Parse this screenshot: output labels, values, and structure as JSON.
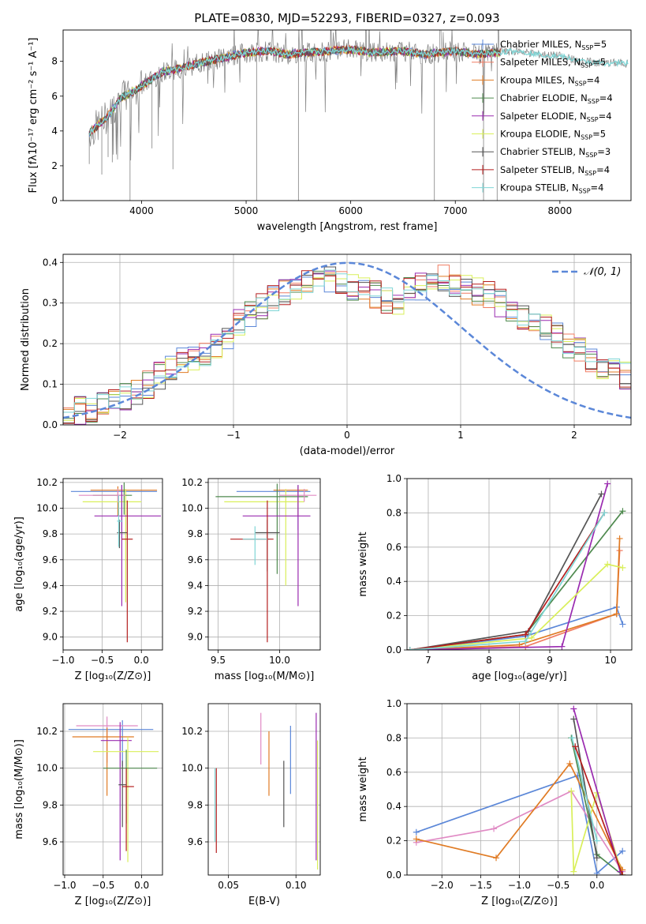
{
  "title": "PLATE=0830, MJD=52293, FIBERID=0327, z=0.093",
  "colors": {
    "chabrier_miles": "#5b87d8",
    "salpeter_miles": "#f07d63",
    "kroupa_miles": "#e07b24",
    "chabrier_elodie": "#4f8a4f",
    "salpeter_elodie": "#9a2bb0",
    "kroupa_elodie": "#d9ef5a",
    "chabrier_stelib": "#555555",
    "salpeter_stelib": "#b51f1f",
    "kroupa_stelib": "#7fd6d6",
    "extra_pink": "#e08ac4",
    "data": "#808080",
    "gauss": "#5b87d8"
  },
  "chart_data": [
    {
      "id": "spectrum",
      "type": "line",
      "xlabel": "wavelength [Angstrom, rest frame]",
      "ylabel": "Flux [fλ10⁻¹⁷ erg cm⁻² s⁻¹ A⁻¹]",
      "xlim": [
        3250,
        8680
      ],
      "ylim": [
        0,
        9.8
      ],
      "xticks": [
        "4000",
        "5000",
        "6000",
        "7000",
        "8000"
      ],
      "yticks": [
        "0",
        "2",
        "4",
        "6",
        "8"
      ],
      "legend_position": "right",
      "legend": [
        "Chabrier MILES, N_SSP=5",
        "Salpeter MILES, N_SSP=5",
        "Kroupa MILES, N_SSP=4",
        "Chabrier ELODIE, N_SSP=4",
        "Salpeter ELODIE, N_SSP=4",
        "Kroupa ELODIE, N_SSP=5",
        "Chabrier STELIB, N_SSP=3",
        "Salpeter STELIB, N_SSP=4",
        "Kroupa STELIB, N_SSP=4"
      ],
      "continuum": {
        "x": [
          3500,
          3600,
          3700,
          3800,
          3900,
          4000,
          4100,
          4200,
          4300,
          4500,
          4700,
          5000,
          5200,
          5400,
          5600,
          5800,
          6000,
          6200,
          6500,
          6700,
          7000,
          7200,
          7400,
          7600,
          7800,
          8000,
          8200,
          8400,
          8600
        ],
        "y": [
          3.9,
          4.4,
          5.0,
          5.9,
          6.2,
          6.6,
          7.0,
          7.4,
          7.5,
          7.8,
          8.1,
          8.5,
          8.6,
          8.4,
          8.5,
          8.6,
          8.7,
          8.5,
          8.6,
          8.4,
          8.6,
          8.4,
          8.5,
          8.6,
          8.4,
          8.3,
          8.0,
          7.9,
          7.9
        ]
      },
      "dips": {
        "x": [
          3500,
          3620,
          3680,
          3720,
          3760,
          3890,
          4100,
          4300,
          5100,
          5500,
          6800,
          7270,
          7400
        ],
        "y": [
          2.1,
          1.5,
          2.5,
          2.2,
          3.9,
          0.0,
          3.0,
          1.8,
          0.0,
          0.0,
          0.0,
          0.0,
          0.0
        ]
      }
    },
    {
      "id": "residuals",
      "type": "histogram",
      "xlabel": "(data-model)/error",
      "ylabel": "Normed distribution",
      "xlim": [
        -2.5,
        2.5
      ],
      "ylim": [
        0,
        0.42
      ],
      "xticks": [
        "−2",
        "−1",
        "0",
        "1",
        "2"
      ],
      "yticks": [
        "0.0",
        "0.1",
        "0.2",
        "0.3",
        "0.4"
      ],
      "legend_position": "top-right",
      "gauss_label": "𝒩(0, 1)",
      "bin_width": 0.1,
      "base": [
        0.03,
        0.035,
        0.04,
        0.05,
        0.06,
        0.07,
        0.08,
        0.1,
        0.12,
        0.14,
        0.16,
        0.17,
        0.18,
        0.2,
        0.22,
        0.25,
        0.27,
        0.29,
        0.31,
        0.33,
        0.34,
        0.35,
        0.36,
        0.36,
        0.35,
        0.34,
        0.33,
        0.32,
        0.31,
        0.3,
        0.33,
        0.34,
        0.35,
        0.36,
        0.35,
        0.34,
        0.33,
        0.32,
        0.3,
        0.29,
        0.27,
        0.26,
        0.24,
        0.22,
        0.2,
        0.18,
        0.16,
        0.14,
        0.13,
        0.12,
        0.11,
        0.1,
        0.09,
        0.085,
        0.08,
        0.075,
        0.07,
        0.065,
        0.06,
        0.055
      ]
    },
    {
      "id": "age_vs_Z",
      "type": "errorbar",
      "xlabel": "Z [log₁₀(Z/Z⊙)]",
      "ylabel": "age [log₁₀(age/yr)]",
      "xlim": [
        -1.0,
        0.27
      ],
      "ylim": [
        8.9,
        10.23
      ],
      "xticks": [
        "−1.0",
        "−0.5",
        "0.0"
      ],
      "yticks": [
        "9.0",
        "9.2",
        "9.4",
        "9.6",
        "9.8",
        "10.0",
        "10.2"
      ],
      "points": [
        {
          "series": "chabrier_miles",
          "x": -0.25,
          "xerr": [
            0.65,
            0.45
          ],
          "y": 10.13,
          "yerr": [
            0.3,
            0.05
          ]
        },
        {
          "series": "kroupa_miles",
          "x": -0.3,
          "xerr": [
            0.35,
            0.5
          ],
          "y": 10.14,
          "yerr": [
            0.2,
            0.03
          ]
        },
        {
          "series": "kroupa_elodie",
          "x": -0.2,
          "xerr": [
            0.55,
            0.2
          ],
          "y": 10.05,
          "yerr": [
            0.78,
            0.1
          ]
        },
        {
          "series": "chabrier_elodie",
          "x": -0.22,
          "xerr": [
            0.4,
            0.1
          ],
          "y": 10.1,
          "yerr": [
            0.15,
            0.1
          ]
        },
        {
          "series": "extra_pink",
          "x": -0.3,
          "xerr": [
            0.5,
            0.1
          ],
          "y": 10.1,
          "yerr": [
            0.05,
            0.05
          ]
        },
        {
          "series": "salpeter_elodie",
          "x": -0.25,
          "xerr": [
            0.35,
            0.5
          ],
          "y": 9.94,
          "yerr": [
            0.7,
            0.24
          ]
        },
        {
          "series": "chabrier_stelib",
          "x": -0.28,
          "xerr": [
            0.03,
            0.1
          ],
          "y": 9.81,
          "yerr": [
            0.12,
            0.1
          ]
        },
        {
          "series": "salpeter_stelib",
          "x": -0.18,
          "xerr": [
            0.07,
            0.07
          ],
          "y": 9.76,
          "yerr": [
            0.8,
            0.3
          ]
        },
        {
          "series": "kroupa_stelib",
          "x": -0.29,
          "xerr": [
            0.02,
            0.05
          ],
          "y": 9.9,
          "yerr": [
            0.2,
            0.2
          ]
        }
      ]
    },
    {
      "id": "age_vs_mass",
      "type": "errorbar",
      "xlabel": "mass [log₁₀(M/M⊙)]",
      "ylabel": "",
      "xlim": [
        9.42,
        10.33
      ],
      "ylim": [
        8.9,
        10.23
      ],
      "xticks": [
        "9.5",
        "10.0"
      ],
      "yticks": [
        "9.0",
        "9.2",
        "9.4",
        "9.6",
        "9.8",
        "10.0",
        "10.2"
      ],
      "points": [
        {
          "series": "chabrier_miles",
          "x": 10.15,
          "xerr": [
            0.5,
            0.1
          ],
          "y": 10.13,
          "yerr": [
            0.3,
            0.05
          ]
        },
        {
          "series": "kroupa_miles",
          "x": 10.15,
          "xerr": [
            0.2,
            0.08
          ],
          "y": 10.14,
          "yerr": [
            0.2,
            0.03
          ]
        },
        {
          "series": "kroupa_elodie",
          "x": 10.05,
          "xerr": [
            0.5,
            0.15
          ],
          "y": 10.05,
          "yerr": [
            0.65,
            0.1
          ]
        },
        {
          "series": "chabrier_elodie",
          "x": 9.98,
          "xerr": [
            0.5,
            0.25
          ],
          "y": 10.09,
          "yerr": [
            0.6,
            0.1
          ]
        },
        {
          "series": "extra_pink",
          "x": 10.2,
          "xerr": [
            0.2,
            0.1
          ],
          "y": 10.1,
          "yerr": [
            0.05,
            0.05
          ]
        },
        {
          "series": "salpeter_elodie",
          "x": 10.15,
          "xerr": [
            0.45,
            0.1
          ],
          "y": 9.94,
          "yerr": [
            0.7,
            0.24
          ]
        },
        {
          "series": "chabrier_stelib",
          "x": 9.9,
          "xerr": [
            0.1,
            0.1
          ],
          "y": 9.81,
          "yerr": [
            0.3,
            0.1
          ]
        },
        {
          "series": "salpeter_stelib",
          "x": 9.9,
          "xerr": [
            0.3,
            0.05
          ],
          "y": 9.76,
          "yerr": [
            0.8,
            0.3
          ]
        },
        {
          "series": "kroupa_stelib",
          "x": 9.8,
          "xerr": [
            0.1,
            0.1
          ],
          "y": 9.76,
          "yerr": [
            0.2,
            0.1
          ]
        }
      ]
    },
    {
      "id": "weight_vs_age",
      "type": "line",
      "xlabel": "age [log₁₀(age/yr)]",
      "ylabel": "mass weight",
      "xlim": [
        6.65,
        10.35
      ],
      "ylim": [
        0,
        1.0
      ],
      "xticks": [
        "7",
        "8",
        "9",
        "10"
      ],
      "yticks": [
        "0.0",
        "0.2",
        "0.4",
        "0.6",
        "0.8",
        "1.0"
      ],
      "series": [
        {
          "series": "chabrier_miles",
          "x": [
            6.7,
            8.6,
            10.1,
            10.2
          ],
          "y": [
            0.0,
            0.08,
            0.25,
            0.15
          ]
        },
        {
          "series": "salpeter_miles",
          "x": [
            6.7,
            8.6,
            10.1,
            10.15
          ],
          "y": [
            0.0,
            0.02,
            0.21,
            0.58
          ]
        },
        {
          "series": "kroupa_miles",
          "x": [
            6.7,
            8.5,
            10.1,
            10.15
          ],
          "y": [
            0.0,
            0.03,
            0.21,
            0.65
          ]
        },
        {
          "series": "chabrier_elodie",
          "x": [
            6.7,
            8.6,
            10.2
          ],
          "y": [
            0.0,
            0.09,
            0.81
          ]
        },
        {
          "series": "salpeter_elodie",
          "x": [
            6.7,
            9.2,
            9.95
          ],
          "y": [
            0.0,
            0.02,
            0.97
          ]
        },
        {
          "series": "kroupa_elodie",
          "x": [
            6.7,
            8.7,
            9.95,
            10.2
          ],
          "y": [
            0.0,
            0.07,
            0.5,
            0.48
          ]
        },
        {
          "series": "chabrier_stelib",
          "x": [
            6.7,
            8.65,
            9.85
          ],
          "y": [
            0.0,
            0.11,
            0.91
          ]
        },
        {
          "series": "salpeter_stelib",
          "x": [
            6.7,
            8.6,
            9.9
          ],
          "y": [
            0.0,
            0.09,
            0.8
          ]
        },
        {
          "series": "kroupa_stelib",
          "x": [
            6.7,
            8.6,
            9.9
          ],
          "y": [
            0.0,
            0.05,
            0.8
          ]
        }
      ]
    },
    {
      "id": "mass_vs_Z",
      "type": "errorbar",
      "xlabel": "Z [log₁₀(Z/Z⊙)]",
      "ylabel": "mass [log₁₀(M/M⊙)]",
      "xlim": [
        -1.02,
        0.27
      ],
      "ylim": [
        9.42,
        10.35
      ],
      "xticks": [
        "−1.0",
        "−0.5",
        "0.0"
      ],
      "yticks": [
        "9.6",
        "9.8",
        "10.0",
        "10.2"
      ],
      "points": [
        {
          "series": "chabrier_miles",
          "x": -0.25,
          "xerr": [
            0.7,
            0.4
          ],
          "y": 10.21,
          "yerr": [
            0.2,
            0.05
          ]
        },
        {
          "series": "extra_pink",
          "x": -0.45,
          "xerr": [
            0.4,
            0.4
          ],
          "y": 10.23,
          "yerr": [
            0.2,
            0.05
          ]
        },
        {
          "series": "kroupa_miles",
          "x": -0.45,
          "xerr": [
            0.45,
            0.35
          ],
          "y": 10.17,
          "yerr": [
            0.32,
            0.05
          ]
        },
        {
          "series": "salpeter_elodie",
          "x": -0.28,
          "xerr": [
            0.25,
            0.15
          ],
          "y": 10.15,
          "yerr": [
            0.65,
            0.1
          ]
        },
        {
          "series": "kroupa_elodie",
          "x": -0.18,
          "xerr": [
            0.45,
            0.4
          ],
          "y": 10.09,
          "yerr": [
            0.6,
            0.08
          ]
        },
        {
          "series": "chabrier_elodie",
          "x": -0.2,
          "xerr": [
            0.3,
            0.4
          ],
          "y": 10.0,
          "yerr": [
            0.3,
            0.1
          ]
        },
        {
          "series": "chabrier_stelib",
          "x": -0.25,
          "xerr": [
            0.05,
            0.05
          ],
          "y": 9.91,
          "yerr": [
            0.23,
            0.13
          ]
        },
        {
          "series": "salpeter_stelib",
          "x": -0.2,
          "xerr": [
            0.05,
            0.1
          ],
          "y": 9.9,
          "yerr": [
            0.35,
            0.1
          ]
        }
      ]
    },
    {
      "id": "ebv",
      "type": "errorbar",
      "xlabel": "E(B-V)",
      "ylabel": "",
      "xlim": [
        0.035,
        0.118
      ],
      "ylim": [
        9.42,
        10.35
      ],
      "xticks": [
        "0.05",
        "0.10"
      ],
      "yticks": [
        "9.6",
        "9.8",
        "10.0",
        "10.2"
      ],
      "points": [
        {
          "series": "salpeter_stelib",
          "x": 0.041,
          "y": 9.77,
          "yerr": [
            0.23,
            0.23
          ]
        },
        {
          "series": "kroupa_stelib",
          "x": 0.04,
          "y": 9.8,
          "yerr": [
            0.2,
            0.2
          ]
        },
        {
          "series": "extra_pink",
          "x": 0.074,
          "y": 10.17,
          "yerr": [
            0.15,
            0.13
          ]
        },
        {
          "series": "kroupa_miles",
          "x": 0.08,
          "y": 10.03,
          "yerr": [
            0.18,
            0.17
          ]
        },
        {
          "series": "chabrier_stelib",
          "x": 0.091,
          "y": 9.86,
          "yerr": [
            0.18,
            0.18
          ]
        },
        {
          "series": "chabrier_miles",
          "x": 0.096,
          "y": 10.05,
          "yerr": [
            0.19,
            0.18
          ]
        },
        {
          "series": "salpeter_elodie",
          "x": 0.115,
          "y": 9.9,
          "yerr": [
            0.4,
            0.4
          ]
        },
        {
          "series": "kroupa_elodie",
          "x": 0.116,
          "y": 9.8,
          "yerr": [
            0.35,
            0.35
          ]
        }
      ]
    },
    {
      "id": "weight_vs_Z",
      "type": "line",
      "xlabel": "Z [log₁₀(Z/Z⊙)]",
      "ylabel": "mass weight",
      "xlim": [
        -2.45,
        0.45
      ],
      "ylim": [
        0,
        1.0
      ],
      "xticks": [
        "−2.0",
        "−1.5",
        "−1.0",
        "−0.5",
        "0.0"
      ],
      "yticks": [
        "0.0",
        "0.2",
        "0.4",
        "0.6",
        "0.8",
        "1.0"
      ],
      "series": [
        {
          "series": "chabrier_miles",
          "x": [
            -2.33,
            -0.25,
            0.0,
            0.33
          ],
          "y": [
            0.25,
            0.58,
            0.01,
            0.14
          ]
        },
        {
          "series": "extra_pink",
          "x": [
            -2.33,
            -1.33,
            -0.33,
            0.33
          ],
          "y": [
            0.19,
            0.27,
            0.49,
            0.02
          ]
        },
        {
          "series": "kroupa_miles",
          "x": [
            -2.33,
            -1.3,
            -0.35,
            0.33
          ],
          "y": [
            0.21,
            0.1,
            0.65,
            0.03
          ]
        },
        {
          "series": "kroupa_elodie",
          "x": [
            -0.33,
            -0.3,
            0.0,
            0.33
          ],
          "y": [
            0.49,
            0.02,
            0.48,
            0.0
          ]
        },
        {
          "series": "chabrier_elodie",
          "x": [
            -0.33,
            0.0,
            0.33
          ],
          "y": [
            0.8,
            0.12,
            0.0
          ]
        },
        {
          "series": "salpeter_elodie",
          "x": [
            -0.3,
            0.3
          ],
          "y": [
            0.97,
            0.02
          ]
        },
        {
          "series": "chabrier_stelib",
          "x": [
            -0.3,
            0.0
          ],
          "y": [
            0.91,
            0.1
          ]
        },
        {
          "series": "kroupa_stelib",
          "x": [
            -0.32,
            0.0
          ],
          "y": [
            0.8,
            0.2
          ]
        },
        {
          "series": "salpeter_stelib",
          "x": [
            -0.28,
            0.33
          ],
          "y": [
            0.75,
            0.0
          ]
        }
      ]
    }
  ]
}
